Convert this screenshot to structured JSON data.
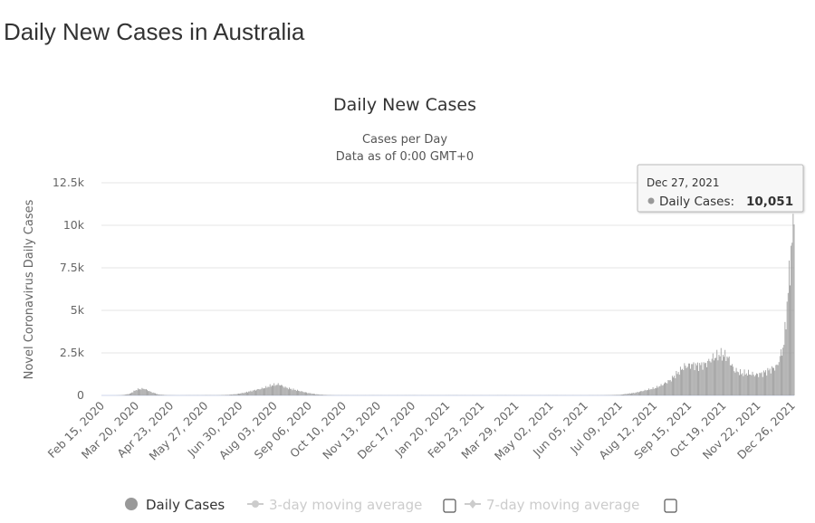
{
  "page": {
    "title": "Daily New Cases in Australia"
  },
  "chart_data": {
    "type": "bar",
    "title": "Daily New Cases",
    "subtitle_lines": [
      "Cases per Day",
      "Data as of 0:00 GMT+0"
    ],
    "ylabel": "Novel Coronavirus Daily Cases",
    "xlabel": "",
    "ylim": [
      0,
      12500
    ],
    "yticks": [
      0,
      2500,
      5000,
      7500,
      10000,
      12500
    ],
    "ytick_labels": [
      "0",
      "2.5k",
      "5k",
      "7.5k",
      "10k",
      "12.5k"
    ],
    "x_start": "Feb 15, 2020",
    "x_end": "Dec 27, 2021",
    "total_days": 682,
    "xtick_interval_days": 34,
    "xtick_labels": [
      "Feb 15, 2020",
      "Mar 20, 2020",
      "Apr 23, 2020",
      "May 27, 2020",
      "Jun 30, 2020",
      "Aug 03, 2020",
      "Sep 06, 2020",
      "Oct 10, 2020",
      "Nov 13, 2020",
      "Dec 17, 2020",
      "Jan 20, 2021",
      "Feb 23, 2021",
      "Mar 29, 2021",
      "May 02, 2021",
      "Jun 05, 2021",
      "Jul 09, 2021",
      "Aug 12, 2021",
      "Sep 15, 2021",
      "Oct 19, 2021",
      "Nov 22, 2021",
      "Dec 26, 2021"
    ],
    "weekly_values_note": "approximate values sampled every 7 days from Feb 15, 2020; final point is Dec 27, 2021",
    "weekly_values": [
      0,
      0,
      2,
      20,
      100,
      350,
      400,
      200,
      60,
      20,
      10,
      5,
      10,
      10,
      10,
      15,
      10,
      20,
      40,
      80,
      150,
      250,
      350,
      450,
      600,
      650,
      450,
      350,
      250,
      150,
      80,
      40,
      20,
      10,
      10,
      8,
      8,
      8,
      10,
      10,
      8,
      8,
      8,
      10,
      10,
      8,
      8,
      8,
      8,
      10,
      10,
      8,
      8,
      8,
      8,
      8,
      10,
      10,
      8,
      8,
      8,
      8,
      8,
      10,
      10,
      8,
      8,
      8,
      8,
      10,
      10,
      15,
      25,
      40,
      100,
      150,
      250,
      350,
      450,
      650,
      900,
      1300,
      1700,
      1800,
      1750,
      1850,
      2200,
      2400,
      2300,
      1500,
      1300,
      1300,
      1200,
      1300,
      1500,
      1700,
      3000,
      8500
    ],
    "final_value": 10051,
    "grid": true,
    "bar_color": "#999999",
    "legend": {
      "placement": "bottom",
      "items": [
        {
          "label": "Daily Cases",
          "active": true
        },
        {
          "label": "3-day moving average",
          "active": false
        },
        {
          "label": "7-day moving average",
          "active": false
        }
      ]
    },
    "tooltip": {
      "date": "Dec 27, 2021",
      "series": "Daily Cases:",
      "value": "10,051"
    }
  }
}
